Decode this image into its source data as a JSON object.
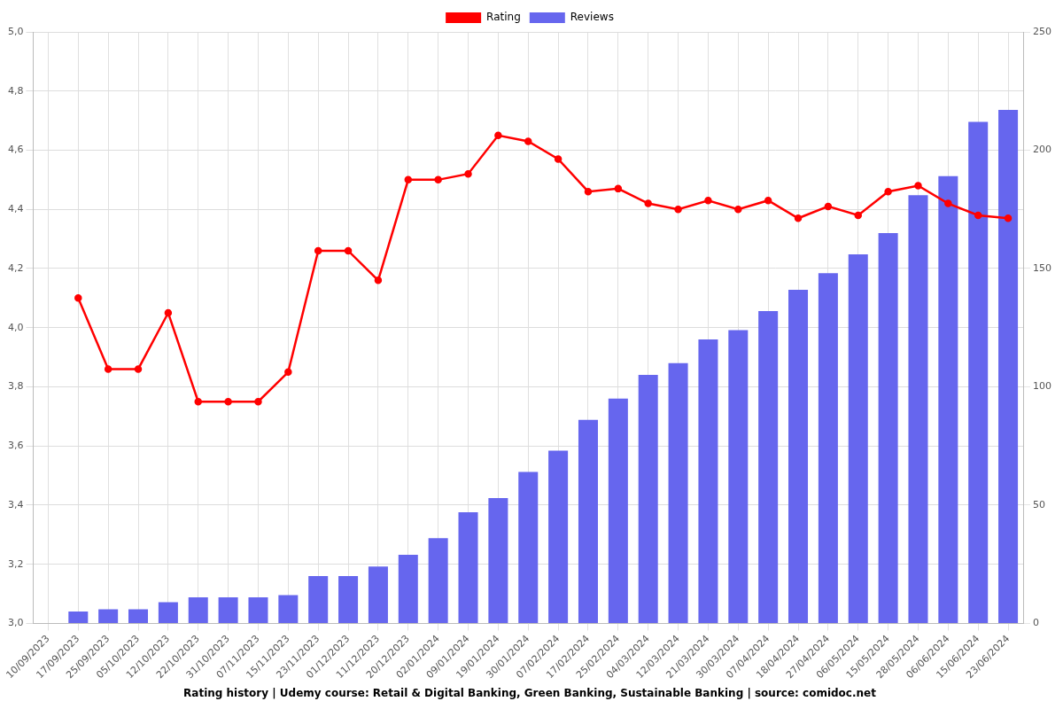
{
  "chart_data": {
    "type": "bar",
    "title": "Rating history | Udemy course: Retail & Digital Banking, Green Banking, Sustainable Banking | source: comidoc.net",
    "categories": [
      "10/09/2023",
      "17/09/2023",
      "25/09/2023",
      "05/10/2023",
      "12/10/2023",
      "22/10/2023",
      "31/10/2023",
      "07/11/2023",
      "15/11/2023",
      "23/11/2023",
      "01/12/2023",
      "11/12/2023",
      "20/12/2023",
      "02/01/2024",
      "09/01/2024",
      "19/01/2024",
      "30/01/2024",
      "07/02/2024",
      "17/02/2024",
      "25/02/2024",
      "04/03/2024",
      "12/03/2024",
      "21/03/2024",
      "30/03/2024",
      "07/04/2024",
      "18/04/2024",
      "27/04/2024",
      "06/05/2024",
      "15/05/2024",
      "28/05/2024",
      "06/06/2024",
      "15/06/2024",
      "23/06/2024"
    ],
    "series": [
      {
        "name": "Rating",
        "type": "line",
        "color": "#ff0000",
        "marker": "circle",
        "line_style": "solid",
        "values": [
          null,
          4.1,
          3.86,
          3.86,
          4.05,
          3.75,
          3.75,
          3.75,
          3.85,
          4.26,
          4.26,
          4.16,
          4.5,
          4.5,
          4.52,
          4.65,
          4.63,
          4.57,
          4.46,
          4.47,
          4.42,
          4.4,
          4.43,
          4.4,
          4.43,
          4.37,
          4.41,
          4.38,
          4.46,
          4.48,
          4.42,
          4.38,
          4.37
        ]
      },
      {
        "name": "Reviews",
        "type": "bar",
        "color": "#6666ee",
        "axis": "y2",
        "values": [
          null,
          5,
          6,
          6,
          9,
          11,
          11,
          11,
          12,
          20,
          20,
          24,
          29,
          36,
          47,
          53,
          64,
          73,
          86,
          95,
          105,
          110,
          120,
          124,
          132,
          141,
          148,
          156,
          165,
          181,
          189,
          212,
          217
        ]
      }
    ],
    "ylim": [
      3,
      5
    ],
    "yticks": [
      {
        "value": 3,
        "label": "3,0"
      },
      {
        "value": 3.2,
        "label": "3,2"
      },
      {
        "value": 3.4,
        "label": "3,4"
      },
      {
        "value": 3.6,
        "label": "3,6"
      },
      {
        "value": 3.8,
        "label": "3,8"
      },
      {
        "value": 4,
        "label": "4,0"
      },
      {
        "value": 4.2,
        "label": "4,2"
      },
      {
        "value": 4.4,
        "label": "4,4"
      },
      {
        "value": 4.6,
        "label": "4,6"
      },
      {
        "value": 4.8,
        "label": "4,8"
      },
      {
        "value": 5,
        "label": "5,0"
      }
    ],
    "y2lim": [
      0,
      250
    ],
    "y2ticks": [
      0,
      50,
      100,
      150,
      200,
      250
    ],
    "grid": true,
    "legend": "top"
  }
}
